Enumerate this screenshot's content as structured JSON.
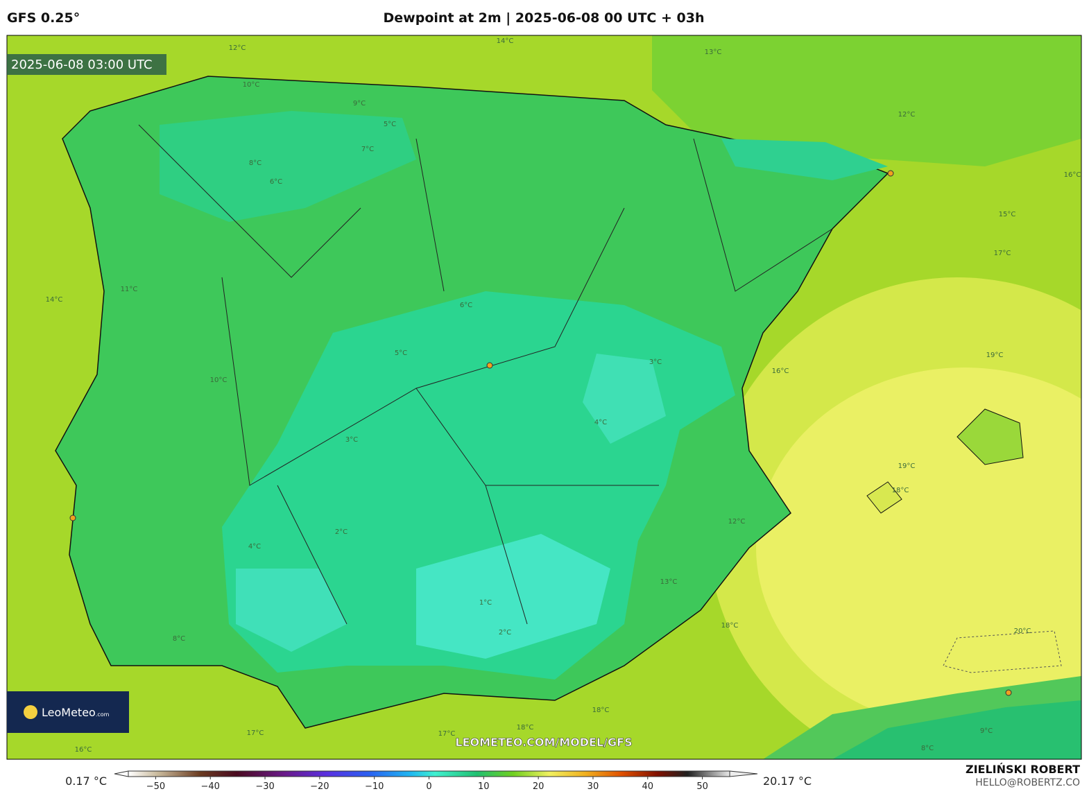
{
  "header": {
    "model": "GFS 0.25°",
    "title": "Dewpoint at 2m | 2025-06-08 00 UTC + 03h"
  },
  "map": {
    "timestamp": "2025-06-08 03:00 UTC",
    "logo": "LeoMeteo",
    "logo_suffix": ".com",
    "watermark": "LEOMETEO.COM/MODEL/GFS",
    "contour_labels": [
      "12°C",
      "14°C",
      "13°C",
      "10°C",
      "9°C",
      "5°C",
      "7°C",
      "8°C",
      "6°C",
      "11°C",
      "14°C",
      "10°C",
      "6°C",
      "5°C",
      "3°C",
      "4°C",
      "3°C",
      "2°C",
      "1°C",
      "2°C",
      "16°C",
      "17°C",
      "19°C",
      "19°C",
      "18°C",
      "20°C",
      "15°C",
      "12°C",
      "13°C",
      "18°C",
      "18°C",
      "17°C",
      "16°C",
      "17°C",
      "18°C",
      "9°C",
      "8°C",
      "12°C",
      "8°C",
      "4°C",
      "16°C"
    ]
  },
  "colorbar": {
    "min_label": "0.17 °C",
    "max_label": "20.17 °C",
    "range": [
      -55,
      55
    ],
    "ticks": [
      {
        "value": -50,
        "label": "−50"
      },
      {
        "value": -40,
        "label": "−40"
      },
      {
        "value": -30,
        "label": "−30"
      },
      {
        "value": -20,
        "label": "−20"
      },
      {
        "value": -10,
        "label": "−10"
      },
      0,
      10,
      20,
      30,
      40,
      50
    ]
  },
  "credits": {
    "author": "ZIELIŃSKI ROBERT",
    "contact": "HELLO@ROBERTZ.CO"
  }
}
